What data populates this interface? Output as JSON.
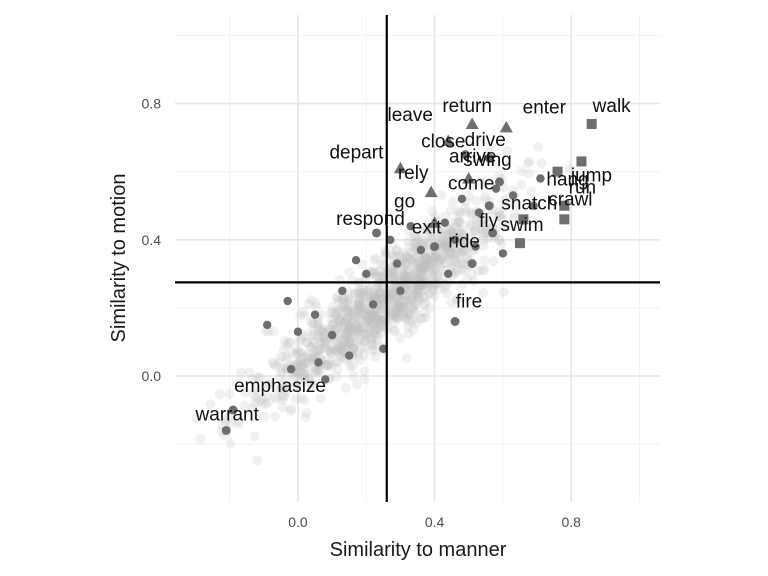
{
  "chart_data": {
    "type": "scatter",
    "xlabel": "Similarity to manner",
    "ylabel": "Similarity to motion",
    "xlim": [
      -0.36,
      1.06
    ],
    "ylim": [
      -0.37,
      1.06
    ],
    "x_ticks": [
      0.0,
      0.4,
      0.8
    ],
    "x_tick_labels": [
      "0.0",
      "0.4",
      "0.8"
    ],
    "y_ticks": [
      0.0,
      0.4,
      0.8
    ],
    "y_tick_labels": [
      "0.0",
      "0.4",
      "0.8"
    ],
    "grid": true,
    "legend": "none",
    "reference_lines": {
      "x": 0.26,
      "y": 0.275
    },
    "colors": {
      "background_point": "#bdbdbd",
      "highlight_point": "#6e6e6e",
      "reference_line": "#000000"
    },
    "background_cloud": {
      "description_count": 1100,
      "approx_range_x": [
        -0.34,
        0.82
      ],
      "approx_range_y": [
        -0.28,
        0.7
      ]
    },
    "labeled_points": [
      {
        "label": "walk",
        "x": 0.86,
        "y": 0.74,
        "shape": "square"
      },
      {
        "label": "jump",
        "x": 0.83,
        "y": 0.63,
        "shape": "square"
      },
      {
        "label": "hang",
        "x": 0.76,
        "y": 0.6,
        "shape": "square"
      },
      {
        "label": "run",
        "x": 0.78,
        "y": 0.5,
        "shape": "square"
      },
      {
        "label": "crawl",
        "x": 0.78,
        "y": 0.46,
        "shape": "square"
      },
      {
        "label": "snatch",
        "x": 0.66,
        "y": 0.46,
        "shape": "square"
      },
      {
        "label": "swim",
        "x": 0.65,
        "y": 0.39,
        "shape": "square"
      },
      {
        "label": "return",
        "x": 0.51,
        "y": 0.74,
        "shape": "triangle"
      },
      {
        "label": "enter",
        "x": 0.61,
        "y": 0.73,
        "shape": "triangle"
      },
      {
        "label": "leave",
        "x": 0.44,
        "y": 0.69,
        "shape": "triangle"
      },
      {
        "label": "arrive",
        "x": 0.5,
        "y": 0.58,
        "shape": "triangle"
      },
      {
        "label": "depart",
        "x": 0.3,
        "y": 0.61,
        "shape": "triangle"
      },
      {
        "label": "rely",
        "x": 0.39,
        "y": 0.54,
        "shape": "triangle"
      },
      {
        "label": "go",
        "x": 0.4,
        "y": 0.45,
        "shape": "triangle"
      },
      {
        "label": "close",
        "x": 0.49,
        "y": 0.65,
        "shape": "circle"
      },
      {
        "label": "drive",
        "x": 0.56,
        "y": 0.64,
        "shape": "circle"
      },
      {
        "label": "swing",
        "x": 0.59,
        "y": 0.57,
        "shape": "circle"
      },
      {
        "label": "come",
        "x": 0.56,
        "y": 0.5,
        "shape": "circle"
      },
      {
        "label": "fly",
        "x": 0.57,
        "y": 0.42,
        "shape": "circle"
      },
      {
        "label": "exit",
        "x": 0.4,
        "y": 0.38,
        "shape": "circle"
      },
      {
        "label": "ride",
        "x": 0.51,
        "y": 0.33,
        "shape": "circle"
      },
      {
        "label": "respond",
        "x": 0.23,
        "y": 0.42,
        "shape": "circle"
      },
      {
        "label": "fire",
        "x": 0.46,
        "y": 0.16,
        "shape": "circle"
      },
      {
        "label": "emphasize",
        "x": -0.19,
        "y": -0.1,
        "shape": "circle"
      },
      {
        "label": "warrant",
        "x": -0.21,
        "y": -0.16,
        "shape": "circle"
      }
    ],
    "unlabeled_highlight_points": [
      [
        0.22,
        0.21
      ],
      [
        0.25,
        0.08
      ],
      [
        0.15,
        0.06
      ],
      [
        0.1,
        0.12
      ],
      [
        0.05,
        0.18
      ],
      [
        -0.03,
        0.22
      ],
      [
        0.0,
        0.13
      ],
      [
        -0.09,
        0.15
      ],
      [
        -0.02,
        0.02
      ],
      [
        0.08,
        -0.01
      ],
      [
        0.06,
        0.04
      ],
      [
        0.17,
        0.34
      ],
      [
        0.27,
        0.4
      ],
      [
        0.33,
        0.44
      ],
      [
        0.36,
        0.37
      ],
      [
        0.44,
        0.3
      ],
      [
        0.46,
        0.4
      ],
      [
        0.53,
        0.48
      ],
      [
        0.58,
        0.55
      ],
      [
        0.63,
        0.53
      ],
      [
        0.69,
        0.5
      ],
      [
        0.71,
        0.58
      ],
      [
        0.48,
        0.52
      ],
      [
        0.52,
        0.38
      ],
      [
        0.43,
        0.45
      ],
      [
        0.6,
        0.36
      ],
      [
        0.13,
        0.25
      ],
      [
        0.2,
        0.3
      ],
      [
        0.3,
        0.25
      ],
      [
        0.29,
        0.33
      ]
    ]
  }
}
